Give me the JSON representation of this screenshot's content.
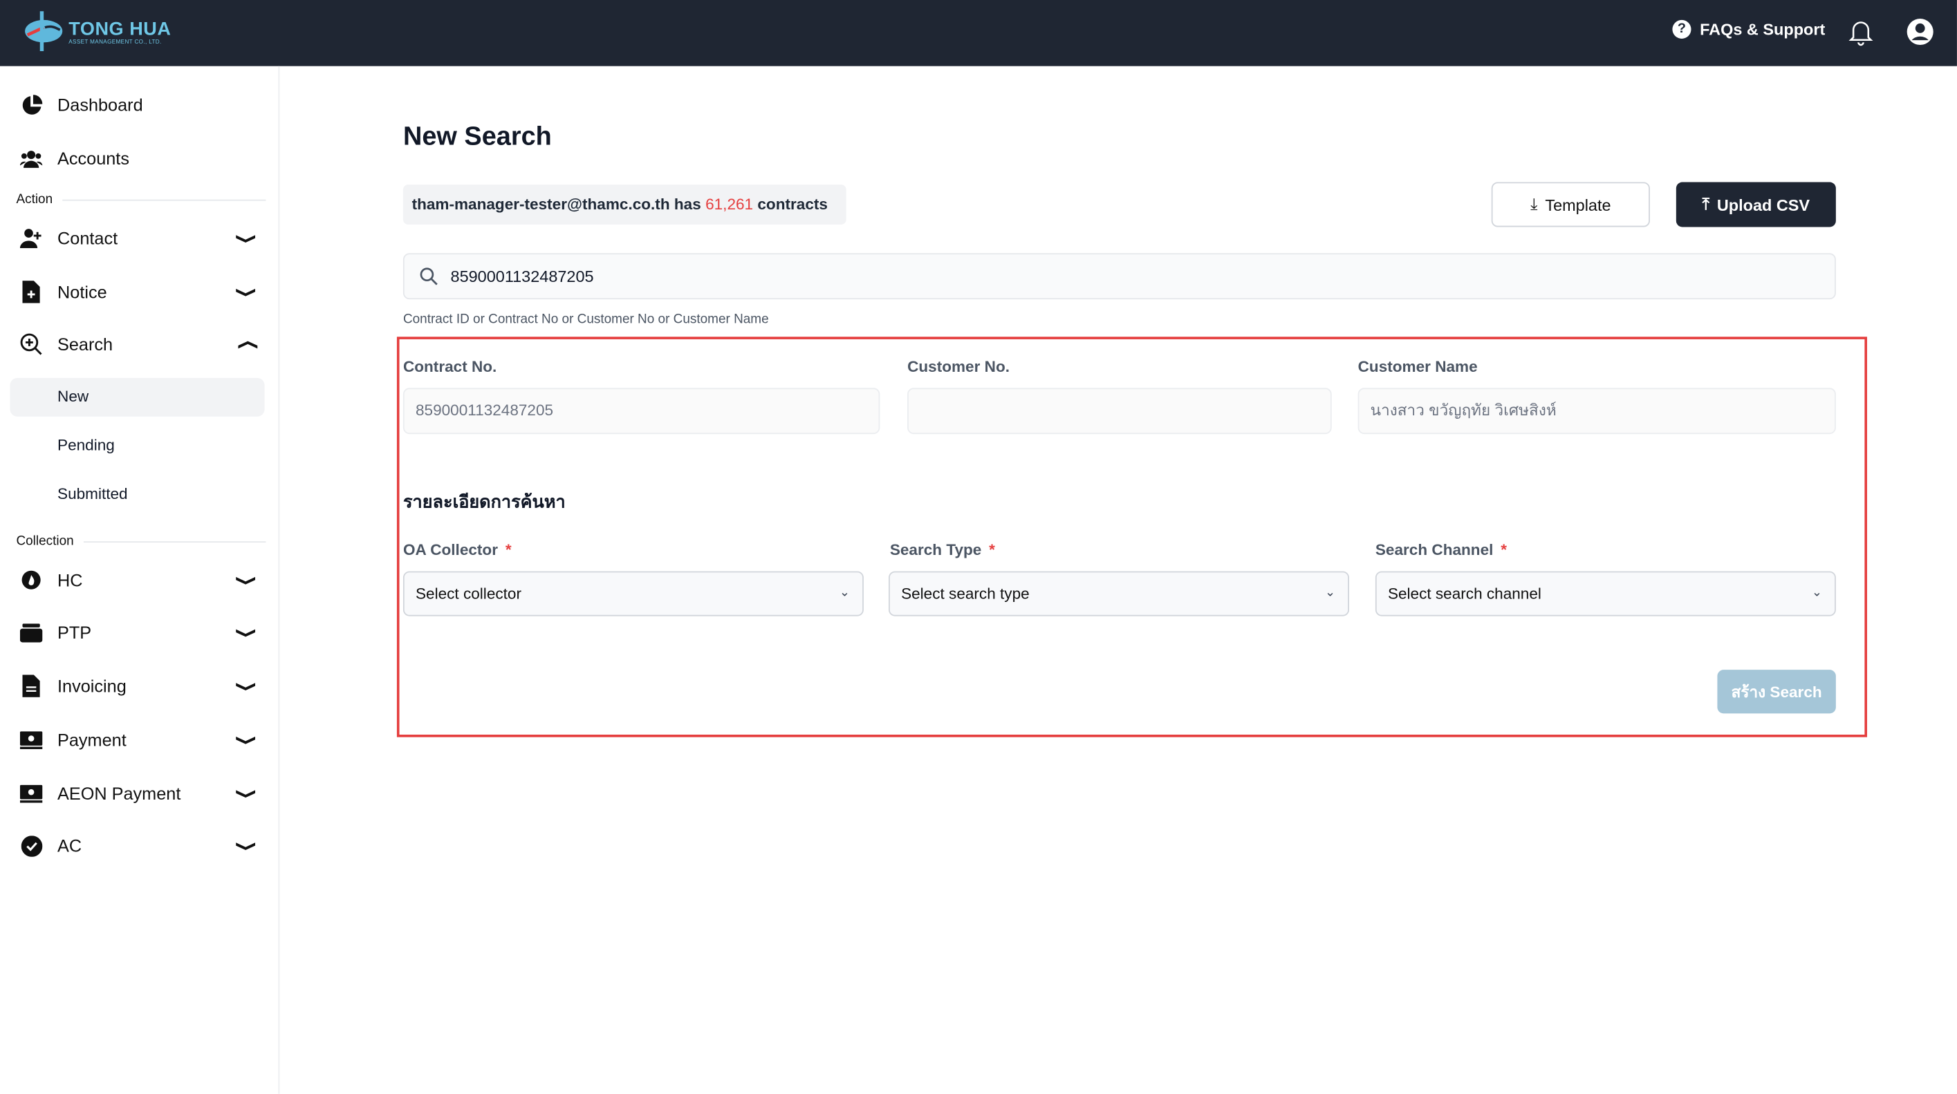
{
  "header": {
    "brand": "TONG HUA",
    "brand_sub": "ASSET MANAGEMENT CO., LTD.",
    "faq_label": "FAQs & Support",
    "bg_color": "#1f2633"
  },
  "sidebar": {
    "top_items": [
      {
        "label": "Dashboard",
        "icon": "pie-chart-icon"
      },
      {
        "label": "Accounts",
        "icon": "users-icon"
      }
    ],
    "action_label": "Action",
    "action_items": [
      {
        "label": "Contact",
        "icon": "user-plus-icon"
      },
      {
        "label": "Notice",
        "icon": "file-plus-icon"
      },
      {
        "label": "Search",
        "icon": "zoom-in-icon"
      }
    ],
    "search_sub": [
      {
        "label": "New",
        "active": true
      },
      {
        "label": "Pending"
      },
      {
        "label": "Submitted"
      }
    ],
    "collection_label": "Collection",
    "collection_items": [
      {
        "label": "HC",
        "icon": "fire-icon"
      },
      {
        "label": "PTP",
        "icon": "wallet-icon"
      },
      {
        "label": "Invoicing",
        "icon": "document-icon"
      },
      {
        "label": "Payment",
        "icon": "money-icon"
      },
      {
        "label": "AEON Payment",
        "icon": "money-icon"
      },
      {
        "label": "AC",
        "icon": "check-circle-icon"
      }
    ]
  },
  "main": {
    "title": "New Search",
    "info": {
      "email": "tham-manager-tester@thamc.co.th",
      "has": "has",
      "count": "61,261",
      "suffix": "contracts"
    },
    "template_label": "Template",
    "upload_label": "Upload CSV",
    "search_value": "8590001132487205",
    "search_help": "Contract ID or Contract No or Customer No or Customer Name",
    "fields": {
      "contract_no": {
        "label": "Contract No.",
        "value": "8590001132487205"
      },
      "customer_no": {
        "label": "Customer No.",
        "value": ""
      },
      "customer_name": {
        "label": "Customer Name",
        "value": "นางสาว ขวัญฤทัย วิเศษสิงห์"
      }
    },
    "section_title": "รายละเอียดการค้นหา",
    "selects": [
      {
        "label": "OA Collector",
        "required_mark": "*",
        "value": "Select collector"
      },
      {
        "label": "Search Type",
        "required_mark": "*",
        "value": "Select search type"
      },
      {
        "label": "Search Channel",
        "required_mark": "*",
        "value": "Select search channel"
      }
    ],
    "submit_label": "สร้าง Search",
    "accent_color": "#e53e3e"
  }
}
